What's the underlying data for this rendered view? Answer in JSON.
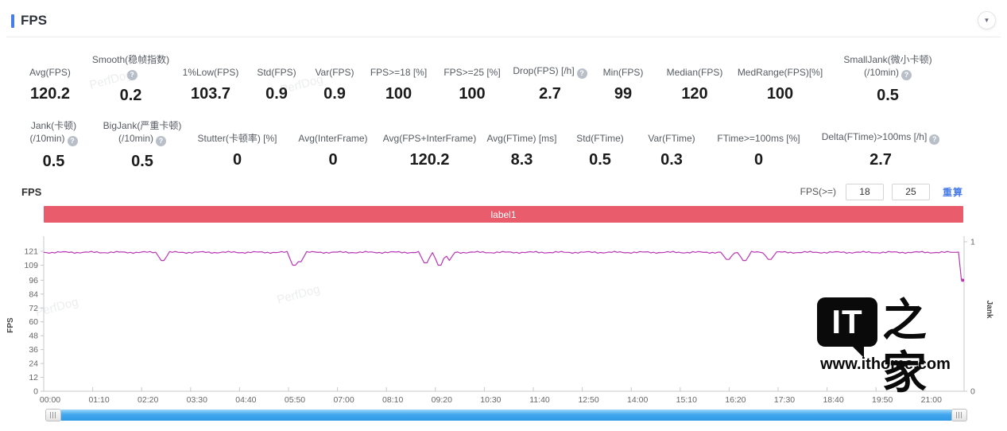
{
  "header": {
    "title": "FPS",
    "collapse_icon": "▼"
  },
  "colors": {
    "accent": "#4a7ce8",
    "banner": "#e85c6b",
    "line": "#b835b5",
    "scrollbar": "#41a7ed",
    "help_icon_bg": "#b9bfc9"
  },
  "metrics": {
    "row1": [
      {
        "label": "Avg(FPS)",
        "value": "120.2"
      },
      {
        "label": "Smooth(稳帧指数)",
        "value": "0.2",
        "help": true
      },
      {
        "label": "1%Low(FPS)",
        "value": "103.7"
      },
      {
        "label": "Std(FPS)",
        "value": "0.9"
      },
      {
        "label": "Var(FPS)",
        "value": "0.9"
      },
      {
        "label": "FPS>=18 [%]",
        "value": "100"
      },
      {
        "label": "FPS>=25 [%]",
        "value": "100"
      },
      {
        "label": "Drop(FPS) [/h]",
        "value": "2.7",
        "help": true
      },
      {
        "label": "Min(FPS)",
        "value": "99"
      },
      {
        "label": "Median(FPS)",
        "value": "120"
      },
      {
        "label": "MedRange(FPS)[%]",
        "value": "100"
      },
      {
        "label": "SmallJank(微小卡顿)",
        "label2": "(/10min)",
        "value": "0.5",
        "help": true
      }
    ],
    "row2": [
      {
        "label": "Jank(卡顿)",
        "label2": "(/10min)",
        "value": "0.5",
        "help": true
      },
      {
        "label": "BigJank(严重卡顿)",
        "label2": "(/10min)",
        "value": "0.5",
        "help": true
      },
      {
        "label": "Stutter(卡顿率) [%]",
        "value": "0"
      },
      {
        "label": "Avg(InterFrame)",
        "value": "0"
      },
      {
        "label": "Avg(FPS+InterFrame)",
        "value": "120.2"
      },
      {
        "label": "Avg(FTime) [ms]",
        "value": "8.3"
      },
      {
        "label": "Std(FTime)",
        "value": "0.5"
      },
      {
        "label": "Var(FTime)",
        "value": "0.3"
      },
      {
        "label": "FTime>=100ms [%]",
        "value": "0"
      },
      {
        "label": "Delta(FTime)>100ms [/h]",
        "value": "2.7",
        "help": true
      }
    ]
  },
  "chart": {
    "section_label": "FPS",
    "threshold_label": "FPS(>=)",
    "threshold1": "18",
    "threshold2": "25",
    "apply_label": "重算",
    "banner_label": "label1",
    "watermark": "PerfDog"
  },
  "logo": {
    "bubble_text": "IT",
    "suffix_text": "之家",
    "url": "www.ithome.com"
  },
  "chart_data": {
    "type": "line",
    "title": "label1",
    "ylabel": "FPS",
    "y2label": "Jank",
    "ylim": [
      0,
      121
    ],
    "y2lim": [
      0,
      1
    ],
    "y_ticks": [
      121,
      109,
      96,
      84,
      72,
      60,
      48,
      36,
      24,
      12,
      0
    ],
    "y2_ticks": [
      1,
      0
    ],
    "x_ticks": [
      "00:00",
      "01:10",
      "02:20",
      "03:30",
      "04:40",
      "05:50",
      "07:00",
      "08:10",
      "09:20",
      "10:30",
      "11:40",
      "12:50",
      "14:00",
      "15:10",
      "16:20",
      "17:30",
      "18:40",
      "19:50",
      "21:00"
    ],
    "x_tick_interval_s": 70,
    "grid": false,
    "legend": "none",
    "line_color": "#b835b5",
    "banner_color": "#e85c6b",
    "series": [
      {
        "name": "FPS",
        "baseline": 121,
        "jitter": 1.8,
        "t_max": 1316,
        "dips": [
          [
            170,
            113
          ],
          [
            358,
            109
          ],
          [
            367,
            112
          ],
          [
            545,
            111
          ],
          [
            566,
            109
          ],
          [
            580,
            113
          ],
          [
            977,
            114
          ],
          [
            1003,
            113
          ],
          [
            1037,
            114
          ]
        ],
        "end_drop": {
          "t": 1312,
          "value": 96
        }
      }
    ]
  }
}
